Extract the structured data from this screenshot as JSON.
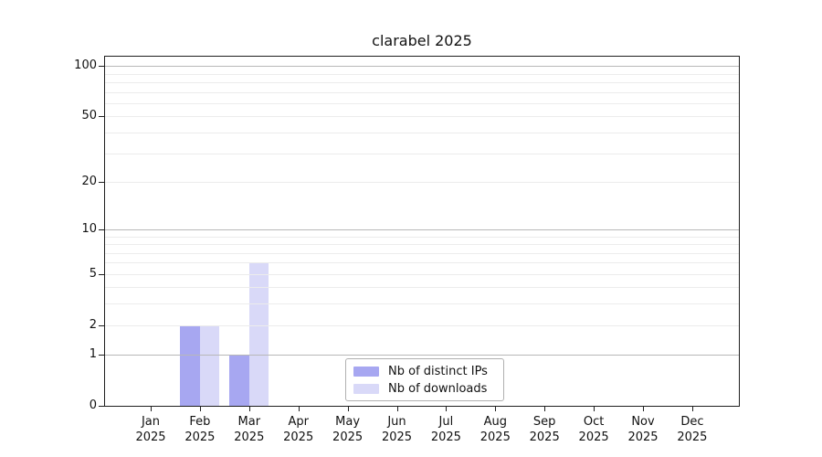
{
  "title": "clarabel 2025",
  "chart_data": {
    "type": "bar",
    "yscale": "log1p",
    "ylim": [
      0,
      113
    ],
    "yticks": [
      0,
      1,
      2,
      5,
      10,
      20,
      50,
      100
    ],
    "grid": "horizontal, minor log gridlines, drawn above bars",
    "legend_position": "lower center",
    "categories": [
      {
        "month": "Jan",
        "year": "2025"
      },
      {
        "month": "Feb",
        "year": "2025"
      },
      {
        "month": "Mar",
        "year": "2025"
      },
      {
        "month": "Apr",
        "year": "2025"
      },
      {
        "month": "May",
        "year": "2025"
      },
      {
        "month": "Jun",
        "year": "2025"
      },
      {
        "month": "Jul",
        "year": "2025"
      },
      {
        "month": "Aug",
        "year": "2025"
      },
      {
        "month": "Sep",
        "year": "2025"
      },
      {
        "month": "Oct",
        "year": "2025"
      },
      {
        "month": "Nov",
        "year": "2025"
      },
      {
        "month": "Dec",
        "year": "2025"
      }
    ],
    "series": [
      {
        "name": "Nb of distinct IPs",
        "color": "#a7a7f1",
        "values": [
          0,
          2,
          1,
          0,
          0,
          0,
          0,
          0,
          0,
          0,
          0,
          0
        ]
      },
      {
        "name": "Nb of downloads",
        "color": "#d9d9f8",
        "values": [
          0,
          2,
          6,
          0,
          0,
          0,
          0,
          0,
          0,
          0,
          0,
          0
        ]
      }
    ]
  }
}
